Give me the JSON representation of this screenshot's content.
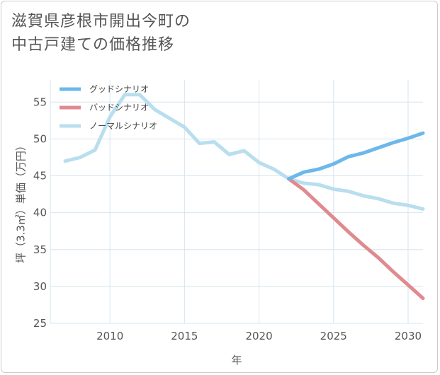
{
  "title": {
    "line1": "滋賀県彦根市開出今町の",
    "line2": "中古戸建ての価格推移"
  },
  "chart_data": {
    "type": "line",
    "xlabel": "年",
    "ylabel": "坪（3.3㎡）単価（万円）",
    "xlim": [
      2006,
      2031
    ],
    "ylim": [
      25,
      58
    ],
    "xticks": [
      2010,
      2015,
      2020,
      2025,
      2030
    ],
    "yticks": [
      25,
      30,
      35,
      40,
      45,
      50,
      55
    ],
    "grid": true,
    "legend_position": "top-left",
    "series": [
      {
        "name": "グッドシナリオ",
        "color": "#6cb8ea",
        "x": [
          2022,
          2023,
          2024,
          2025,
          2026,
          2027,
          2028,
          2029,
          2030,
          2031
        ],
        "y": [
          44.6,
          45.5,
          45.9,
          46.6,
          47.6,
          48.1,
          48.8,
          49.5,
          50.1,
          50.8
        ]
      },
      {
        "name": "バッドシナリオ",
        "color": "#e08a8f",
        "x": [
          2022,
          2023,
          2024,
          2025,
          2026,
          2027,
          2028,
          2029,
          2030,
          2031
        ],
        "y": [
          44.6,
          43.1,
          41.2,
          39.3,
          37.4,
          35.6,
          33.9,
          32.0,
          30.2,
          28.4
        ]
      },
      {
        "name": "ノーマルシナリオ",
        "color": "#b9deee",
        "x": [
          2007,
          2008,
          2009,
          2010,
          2011,
          2012,
          2013,
          2014,
          2015,
          2016,
          2017,
          2018,
          2019,
          2020,
          2021,
          2022,
          2023,
          2024,
          2025,
          2026,
          2027,
          2028,
          2029,
          2030,
          2031
        ],
        "y": [
          47.0,
          47.5,
          48.5,
          53.0,
          56.0,
          56.0,
          54.0,
          52.8,
          51.6,
          49.4,
          49.6,
          47.9,
          48.4,
          46.8,
          45.9,
          44.6,
          44.0,
          43.8,
          43.2,
          42.9,
          42.3,
          41.9,
          41.3,
          41.0,
          40.5
        ]
      }
    ]
  }
}
